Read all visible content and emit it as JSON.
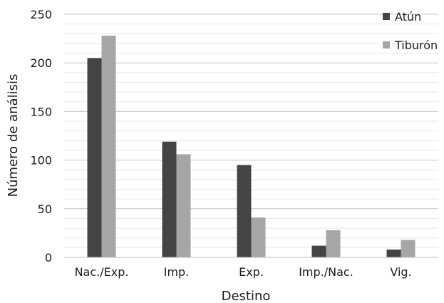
{
  "chart_data": {
    "type": "bar",
    "title": "",
    "xlabel": "Destino",
    "ylabel": "Número de análisis",
    "categories": [
      "Nac./Exp.",
      "Imp.",
      "Exp.",
      "Imp./Nac.",
      "Vig."
    ],
    "series": [
      {
        "name": "Atún",
        "values": [
          205,
          119,
          95,
          12,
          8
        ],
        "color": "#444444"
      },
      {
        "name": "Tiburón",
        "values": [
          228,
          106,
          41,
          28,
          18
        ],
        "color": "#a6a6a6"
      }
    ],
    "ylim": [
      0,
      250
    ],
    "yticks": [
      0,
      50,
      100,
      150,
      200,
      250
    ],
    "minor_grid_step": 10,
    "grid": true,
    "legend_position": "top-right"
  }
}
